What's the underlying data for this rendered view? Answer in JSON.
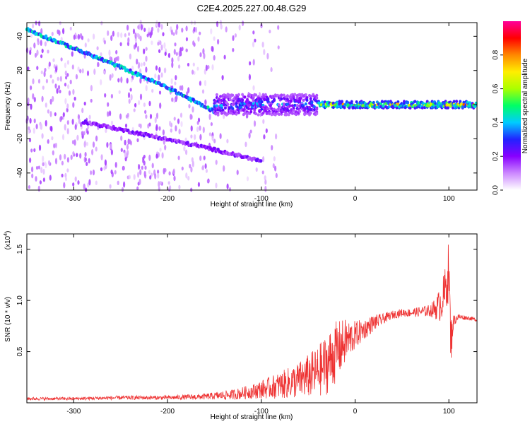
{
  "title": "C2E4.2025.227.00.48.G29",
  "chart_data": [
    {
      "type": "heatmap",
      "xlabel": "Height of straight line (km)",
      "ylabel": "Frequency (Hz)",
      "xlim": [
        -350,
        130
      ],
      "ylim": [
        -50,
        48
      ],
      "xticks": [
        -300,
        -200,
        -100,
        0,
        100
      ],
      "yticks": [
        -40,
        -20,
        0,
        20,
        40
      ],
      "colorbar": {
        "label": "Normalized spectral amplitude",
        "range": [
          0,
          1
        ],
        "ticks": [
          0.0,
          0.2,
          0.4,
          0.6,
          0.8
        ],
        "colormap": [
          "#ffffff",
          "#cc88ff",
          "#8800ff",
          "#2222ff",
          "#00ccff",
          "#00ff66",
          "#aaff00",
          "#ffee00",
          "#ff8800",
          "#ff0000",
          "#ff0099"
        ]
      },
      "features": [
        {
          "name": "descending trace",
          "x": [
            -350,
            -300,
            -250,
            -200,
            -150
          ],
          "y": [
            44,
            33,
            22,
            10,
            -4
          ],
          "amplitude": 0.4
        },
        {
          "name": "faint secondary trace",
          "x": [
            -290,
            -220,
            -160,
            -100
          ],
          "y": [
            -10,
            -18,
            -25,
            -33
          ],
          "amplitude": 0.2
        },
        {
          "name": "broad band",
          "x": [
            -150,
            -40
          ],
          "y": [
            0,
            0
          ],
          "halfwidth": 6,
          "amplitude": 0.35
        },
        {
          "name": "steady line",
          "x": [
            -40,
            130
          ],
          "y": [
            0,
            0
          ],
          "halfwidth": 2,
          "amplitude": 0.7
        }
      ]
    },
    {
      "type": "line",
      "xlabel": "Height of straight line (km)",
      "ylabel": "SNR (10 * v/v)",
      "scale_label": "(x10",
      "scale_exponent": "4",
      "xlim": [
        -350,
        130
      ],
      "ylim": [
        0,
        1.65
      ],
      "xticks": [
        -300,
        -200,
        -100,
        0,
        100
      ],
      "yticks": [
        0.5,
        1.0,
        1.5
      ],
      "ytick_labels": [
        "0.5",
        "1.0",
        "1.5"
      ],
      "color": "#ee3333",
      "x": [
        -350,
        -300,
        -250,
        -200,
        -160,
        -130,
        -110,
        -100,
        -80,
        -60,
        -40,
        -30,
        -20,
        -10,
        0,
        10,
        20,
        30,
        40,
        50,
        60,
        70,
        80,
        85,
        90,
        95,
        100,
        102,
        105,
        110,
        120,
        130
      ],
      "y": [
        0.04,
        0.04,
        0.05,
        0.05,
        0.06,
        0.08,
        0.11,
        0.13,
        0.17,
        0.22,
        0.3,
        0.38,
        0.5,
        0.6,
        0.66,
        0.72,
        0.78,
        0.82,
        0.86,
        0.88,
        0.88,
        0.89,
        0.9,
        0.92,
        0.95,
        1.05,
        1.3,
        0.6,
        0.8,
        0.84,
        0.83,
        0.81
      ],
      "noise": [
        0.015,
        0.015,
        0.02,
        0.02,
        0.03,
        0.05,
        0.07,
        0.09,
        0.13,
        0.18,
        0.25,
        0.3,
        0.3,
        0.22,
        0.14,
        0.1,
        0.08,
        0.05,
        0.04,
        0.04,
        0.04,
        0.05,
        0.06,
        0.1,
        0.16,
        0.22,
        0.3,
        0.25,
        0.06,
        0.03,
        0.02,
        0.02
      ]
    }
  ]
}
